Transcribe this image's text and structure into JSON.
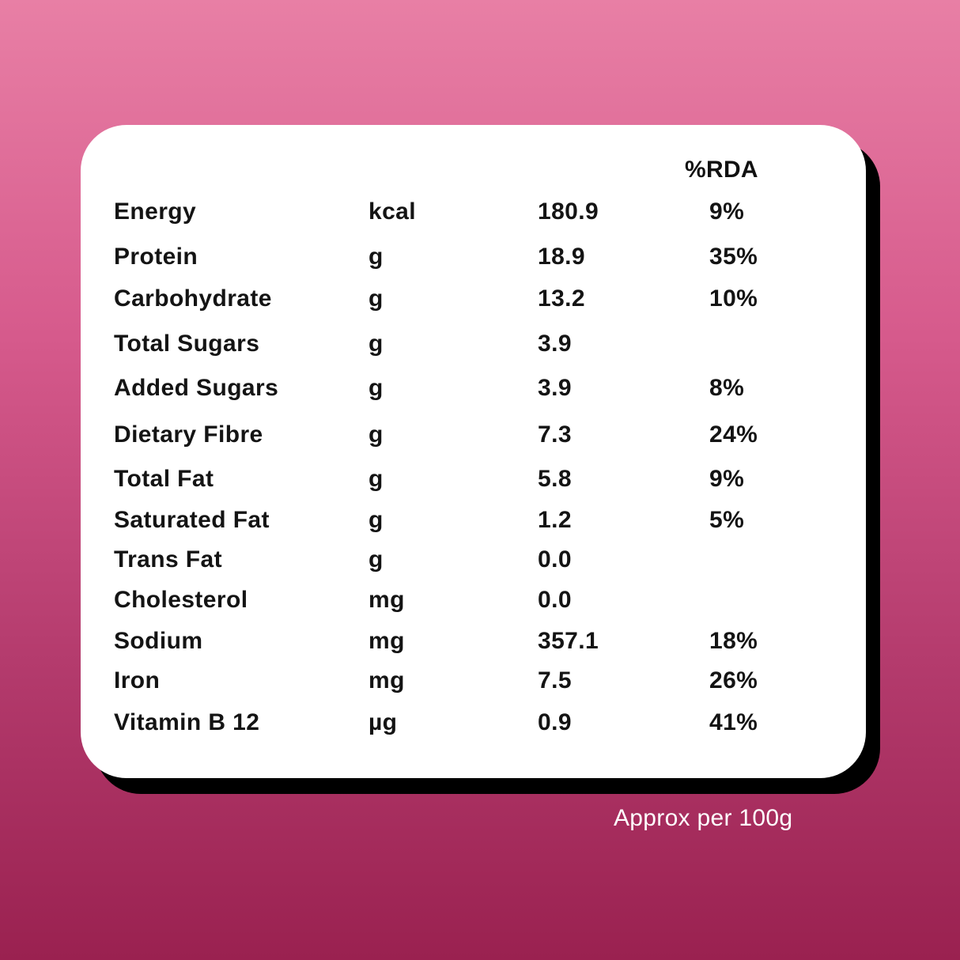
{
  "header": {
    "rda_label": "%RDA"
  },
  "rows": [
    {
      "name": "Energy",
      "unit": "kcal",
      "value": "180.9",
      "rda": "9%"
    },
    {
      "name": "Protein",
      "unit": "g",
      "value": "18.9",
      "rda": "35%"
    },
    {
      "name": "Carbohydrate",
      "unit": "g",
      "value": "13.2",
      "rda": "10%"
    },
    {
      "name": "Total Sugars",
      "unit": "g",
      "value": "3.9",
      "rda": ""
    },
    {
      "name": "Added Sugars",
      "unit": "g",
      "value": "3.9",
      "rda": "8%"
    },
    {
      "name": "Dietary Fibre",
      "unit": "g",
      "value": "7.3",
      "rda": "24%"
    },
    {
      "name": "Total Fat",
      "unit": "g",
      "value": "5.8",
      "rda": "9%"
    },
    {
      "name": "Saturated Fat",
      "unit": "g",
      "value": "1.2",
      "rda": "5%"
    },
    {
      "name": "Trans Fat",
      "unit": "g",
      "value": "0.0",
      "rda": ""
    },
    {
      "name": "Cholesterol",
      "unit": "mg",
      "value": "0.0",
      "rda": ""
    },
    {
      "name": "Sodium",
      "unit": "mg",
      "value": "357.1",
      "rda": "18%"
    },
    {
      "name": "Iron",
      "unit": "mg",
      "value": "7.5",
      "rda": "26%"
    },
    {
      "name": "Vitamin B 12",
      "unit": "µg",
      "value": "0.9",
      "rda": "41%"
    }
  ],
  "footer": {
    "note": "Approx per 100g"
  },
  "colors": {
    "background_top": "#e87fa5",
    "background_bottom": "#9a2150",
    "card": "#ffffff",
    "card_shadow": "#000000",
    "text": "#141414",
    "footer_text": "#ffffff"
  }
}
